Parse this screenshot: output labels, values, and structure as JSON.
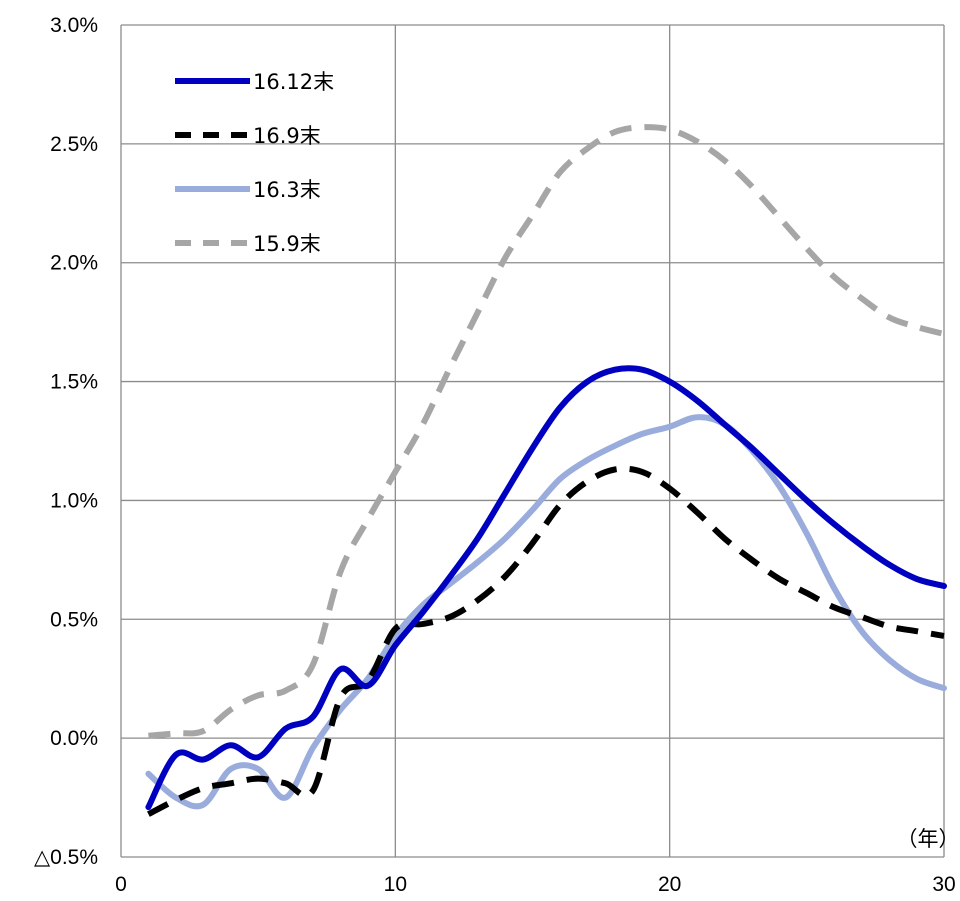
{
  "chart_data": {
    "type": "line",
    "title": "",
    "xlabel": "",
    "ylabel": "",
    "x_unit_label": "（年）",
    "xlim": [
      0,
      30
    ],
    "ylim": [
      -0.5,
      3.0
    ],
    "x_ticks": [
      0,
      10,
      20,
      30
    ],
    "x_tick_labels": [
      "0",
      "10",
      "20",
      "30"
    ],
    "y_ticks": [
      -0.5,
      0.0,
      0.5,
      1.0,
      1.5,
      2.0,
      2.5,
      3.0
    ],
    "y_tick_labels": [
      "△0.5%",
      "0.0%",
      "0.5%",
      "1.0%",
      "1.5%",
      "2.0%",
      "2.5%",
      "3.0%"
    ],
    "grid": true,
    "legend_position": "top-left",
    "x": [
      1,
      2,
      3,
      4,
      5,
      6,
      7,
      8,
      9,
      10,
      11,
      12,
      13,
      14,
      15,
      16,
      17,
      18,
      19,
      20,
      21,
      22,
      23,
      24,
      25,
      26,
      27,
      28,
      29,
      30
    ],
    "series": [
      {
        "name": "16.12末",
        "color": "#0000c0",
        "dash": "solid",
        "values": [
          -0.29,
          -0.07,
          -0.09,
          -0.03,
          -0.08,
          0.04,
          0.09,
          0.29,
          0.22,
          0.39,
          0.53,
          0.68,
          0.84,
          1.03,
          1.22,
          1.39,
          1.5,
          1.55,
          1.55,
          1.5,
          1.42,
          1.32,
          1.22,
          1.11,
          1.0,
          0.9,
          0.81,
          0.73,
          0.67,
          0.64
        ]
      },
      {
        "name": "16.9末",
        "color": "#000000",
        "dash": "dash",
        "values": [
          -0.32,
          -0.26,
          -0.21,
          -0.19,
          -0.17,
          -0.19,
          -0.22,
          0.17,
          0.24,
          0.46,
          0.48,
          0.51,
          0.58,
          0.68,
          0.82,
          0.98,
          1.08,
          1.13,
          1.12,
          1.05,
          0.95,
          0.84,
          0.75,
          0.67,
          0.61,
          0.55,
          0.51,
          0.47,
          0.45,
          0.43
        ]
      },
      {
        "name": "16.3末",
        "color": "#99acdc",
        "dash": "solid",
        "values": [
          -0.15,
          -0.25,
          -0.28,
          -0.13,
          -0.13,
          -0.25,
          -0.04,
          0.12,
          0.25,
          0.43,
          0.56,
          0.65,
          0.74,
          0.84,
          0.96,
          1.09,
          1.17,
          1.23,
          1.28,
          1.31,
          1.35,
          1.32,
          1.21,
          1.06,
          0.86,
          0.63,
          0.45,
          0.33,
          0.25,
          0.21
        ]
      },
      {
        "name": "15.9末",
        "color": "#a6a6a6",
        "dash": "dash",
        "values": [
          0.01,
          0.02,
          0.03,
          0.12,
          0.18,
          0.2,
          0.31,
          0.7,
          0.92,
          1.12,
          1.32,
          1.56,
          1.79,
          2.02,
          2.2,
          2.38,
          2.48,
          2.55,
          2.57,
          2.56,
          2.51,
          2.43,
          2.32,
          2.19,
          2.06,
          1.94,
          1.85,
          1.77,
          1.73,
          1.7
        ]
      }
    ]
  }
}
